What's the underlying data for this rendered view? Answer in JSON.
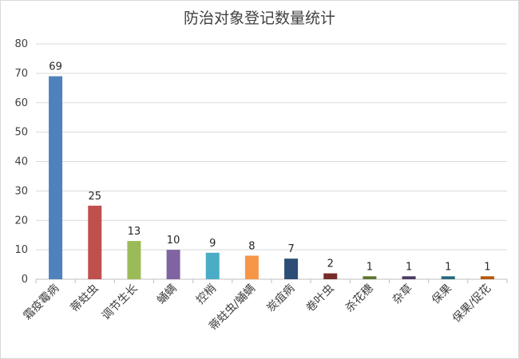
{
  "chart_data": {
    "type": "bar",
    "title": "防治对象登记数量统计",
    "xlabel": "",
    "ylabel": "",
    "ylim": [
      0,
      80
    ],
    "yticks": [
      0,
      10,
      20,
      30,
      40,
      50,
      60,
      70,
      80
    ],
    "grid": true,
    "legend": "none",
    "categories": [
      "霜疫霉病",
      "蒂蛀虫",
      "调节生长",
      "蛹螨",
      "控梢",
      "蒂蛀虫/蛹螨",
      "炭疽病",
      "卷叶虫",
      "杀花穗",
      "杂草",
      "保果",
      "保果/促花"
    ],
    "values": [
      69,
      25,
      13,
      10,
      9,
      8,
      7,
      2,
      1,
      1,
      1,
      1
    ],
    "colors": [
      "#4f81bd",
      "#c0504d",
      "#9bbb59",
      "#8064a2",
      "#4bacc6",
      "#f79646",
      "#2c4d75",
      "#772c2a",
      "#5f7530",
      "#4d3b62",
      "#276a7c",
      "#b65708"
    ]
  }
}
